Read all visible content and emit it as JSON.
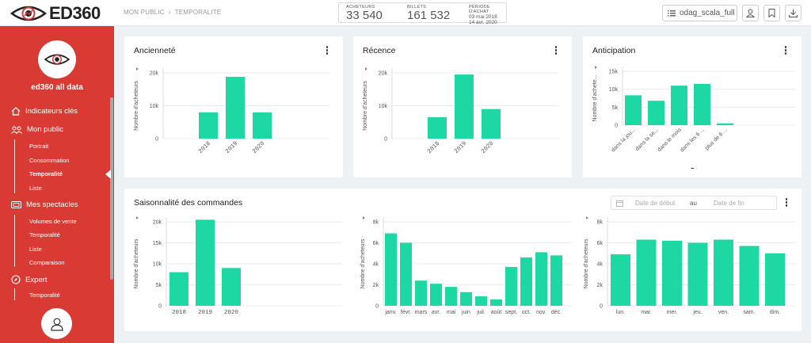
{
  "header": {
    "brand": "ED360",
    "breadcrumb": [
      "MON PUBLIC",
      "TEMPORALITÉ"
    ],
    "stats": {
      "buyers_label": "ACHETEURS",
      "buyers_value": "33 540",
      "tickets_label": "BILLETS",
      "tickets_value": "161 532",
      "period_label": "PÉRIODE D'ACHAT",
      "period_start": "03 mai 2018",
      "period_end": "14 avr. 2020"
    },
    "view_button": "odag_scala_full",
    "icons": [
      "list-icon",
      "user-icon",
      "bookmark-icon",
      "download-icon"
    ]
  },
  "sidebar": {
    "title": "ed360 all data",
    "sections": [
      {
        "label": "Indicateurs clés",
        "icon": "home-icon",
        "items": []
      },
      {
        "label": "Mon public",
        "icon": "people-icon",
        "items": [
          {
            "label": "Portrait",
            "active": false
          },
          {
            "label": "Consommation",
            "active": false
          },
          {
            "label": "Temporalité",
            "active": true
          },
          {
            "label": "Liste",
            "active": false
          }
        ]
      },
      {
        "label": "Mes spectacles",
        "icon": "ticket-icon",
        "items": [
          {
            "label": "Volumes de vente",
            "active": false
          },
          {
            "label": "Temporalité",
            "active": false
          },
          {
            "label": "Liste",
            "active": false
          },
          {
            "label": "Comparaison",
            "active": false
          }
        ]
      },
      {
        "label": "Expert",
        "icon": "compass-icon",
        "items": [
          {
            "label": "Temporalité",
            "active": false
          }
        ]
      }
    ]
  },
  "colors": {
    "bar": "#1ed8a4",
    "sidebar": "#d93b34",
    "grid": "#e9ebee"
  },
  "cards": {
    "anciennete": {
      "title": "Ancienneté"
    },
    "recence": {
      "title": "Récence"
    },
    "anticipation": {
      "title": "Anticipation",
      "placeholder": "-"
    },
    "saisonnalite": {
      "title": "Saisonnalité des commandes",
      "date_start_placeholder": "Date de début",
      "date_between": "au",
      "date_end_placeholder": "Date de fin"
    }
  },
  "chart_data": [
    {
      "id": "anciennete",
      "type": "bar",
      "ylabel": "Nombre d'acheteurs",
      "categories": [
        "2018",
        "2019",
        "2020"
      ],
      "values": [
        8000,
        18800,
        8000
      ],
      "ylim": [
        0,
        20000
      ],
      "yticks": [
        0,
        10000,
        20000
      ],
      "ytick_labels": [
        "0",
        "10k",
        "20k"
      ],
      "grid": true
    },
    {
      "id": "recence",
      "type": "bar",
      "ylabel": "Nombre d'acheteurs",
      "categories": [
        "2018",
        "2019",
        "2020"
      ],
      "values": [
        6500,
        19500,
        9000
      ],
      "ylim": [
        0,
        20000
      ],
      "yticks": [
        0,
        10000,
        20000
      ],
      "ytick_labels": [
        "0",
        "10k",
        "20k"
      ],
      "grid": true
    },
    {
      "id": "anticipation",
      "type": "bar",
      "ylabel": "Nombre d'achete...",
      "categories": [
        "dans la jou...",
        "dans la se...",
        "dans le mois",
        "dans les 6 ...",
        "plus de 6 ..."
      ],
      "values": [
        8300,
        6800,
        11000,
        11500,
        500
      ],
      "ylim": [
        0,
        15000
      ],
      "yticks": [
        0,
        5000,
        10000,
        15000
      ],
      "ytick_labels": [
        "0",
        "5k",
        "10k",
        "15k"
      ],
      "grid": true
    },
    {
      "id": "saison_annee",
      "type": "bar",
      "ylabel": "Nombre d'acheteurs",
      "categories": [
        "2018",
        "2019",
        "2020"
      ],
      "values": [
        8000,
        20500,
        9000
      ],
      "ylim": [
        0,
        20000
      ],
      "yticks": [
        0,
        5000,
        10000,
        15000,
        20000
      ],
      "ytick_labels": [
        "0",
        "5k",
        "10k",
        "15k",
        "20k"
      ],
      "grid": true
    },
    {
      "id": "saison_mois",
      "type": "bar",
      "ylabel": "Nombre d'acheteurs",
      "categories": [
        "janv.",
        "févr.",
        "mars",
        "avr.",
        "mai",
        "juin",
        "juil.",
        "août",
        "sept.",
        "oct.",
        "nov.",
        "déc."
      ],
      "values": [
        6900,
        6000,
        2400,
        2100,
        1800,
        1300,
        900,
        600,
        3700,
        4600,
        5100,
        4800
      ],
      "ylim": [
        0,
        8000
      ],
      "yticks": [
        0,
        2000,
        4000,
        6000,
        8000
      ],
      "ytick_labels": [
        "0",
        "2k",
        "4k",
        "6k",
        "8k"
      ],
      "grid": true
    },
    {
      "id": "saison_jour",
      "type": "bar",
      "ylabel": "Nombre d'acheteurs",
      "categories": [
        "lun.",
        "mar.",
        "mer.",
        "jeu.",
        "ven.",
        "sam.",
        "dim."
      ],
      "values": [
        4900,
        6300,
        6200,
        6000,
        6300,
        5700,
        5000
      ],
      "ylim": [
        0,
        8000
      ],
      "yticks": [
        0,
        2000,
        4000,
        6000,
        8000
      ],
      "ytick_labels": [
        "0",
        "2k",
        "4k",
        "6k",
        "8k"
      ],
      "grid": true
    }
  ]
}
